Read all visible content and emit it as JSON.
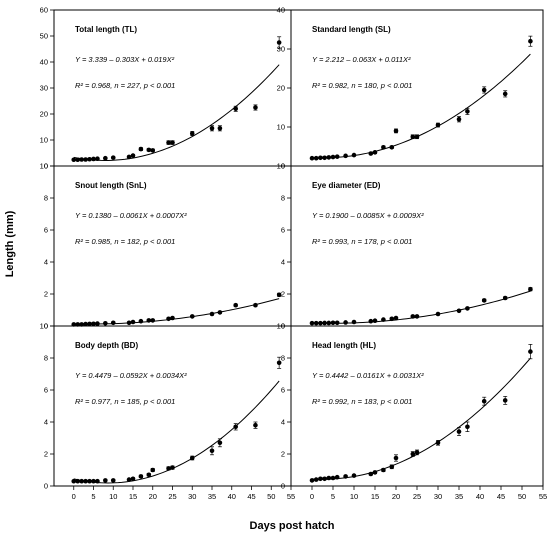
{
  "xlabel": "Days post hatch",
  "ylabel": "Length (mm)",
  "chart_data": [
    {
      "type": "scatter",
      "title": "Total length (TL)",
      "equation": "Y = 3.339 – 0.303X + 0.019X²",
      "stats": "R² = 0.968, n = 227, p < 0.001",
      "coef": [
        3.339,
        -0.303,
        0.019
      ],
      "ylim": [
        0,
        60
      ],
      "yticks": [
        "0",
        "10",
        "20",
        "30",
        "40",
        "50",
        "60"
      ],
      "x": [
        0,
        1,
        2,
        3,
        4,
        5,
        6,
        8,
        10,
        14,
        15,
        17,
        19,
        20,
        24,
        25,
        30,
        35,
        37,
        41,
        46,
        52
      ],
      "y": [
        2.4,
        2.4,
        2.5,
        2.5,
        2.6,
        2.7,
        2.8,
        3.0,
        3.2,
        3.5,
        4.0,
        6.5,
        6.2,
        6.0,
        9.0,
        9.0,
        12.5,
        14.5,
        14.5,
        22.0,
        22.5,
        47.5
      ],
      "err": [
        0.2,
        0.2,
        0.2,
        0.2,
        0.2,
        0.2,
        0.2,
        0.3,
        0.3,
        0.3,
        0.4,
        0.6,
        0.5,
        0.5,
        0.7,
        0.7,
        0.8,
        1.0,
        1.0,
        1.0,
        1.0,
        2.2
      ]
    },
    {
      "type": "scatter",
      "title": "Standard length (SL)",
      "equation": "Y = 2.212 – 0.063X + 0.011X²",
      "stats": "R² = 0.982, n = 180, p < 0.001",
      "coef": [
        2.212,
        -0.063,
        0.011
      ],
      "ylim": [
        0,
        40
      ],
      "yticks": [
        "0",
        "10",
        "20",
        "30",
        "40"
      ],
      "x": [
        0,
        1,
        2,
        3,
        4,
        5,
        6,
        8,
        10,
        14,
        15,
        17,
        19,
        20,
        24,
        25,
        30,
        35,
        37,
        41,
        46,
        52
      ],
      "y": [
        2.0,
        2.0,
        2.1,
        2.1,
        2.2,
        2.3,
        2.4,
        2.6,
        2.8,
        3.2,
        3.5,
        4.8,
        4.8,
        9.0,
        7.5,
        7.5,
        10.5,
        12.0,
        14.0,
        19.5,
        18.5,
        32.0
      ],
      "err": [
        0.1,
        0.1,
        0.1,
        0.1,
        0.1,
        0.1,
        0.1,
        0.2,
        0.2,
        0.2,
        0.3,
        0.3,
        0.3,
        0.5,
        0.5,
        0.5,
        0.5,
        0.7,
        0.8,
        0.8,
        0.8,
        1.3
      ]
    },
    {
      "type": "scatter",
      "title": "Snout length (SnL)",
      "equation": "Y = 0.1380 – 0.0061X + 0.0007X²",
      "stats": "R² = 0.985, n = 182, p < 0.001",
      "coef": [
        0.138,
        -0.0061,
        0.0007
      ],
      "ylim": [
        0,
        10
      ],
      "yticks": [
        "0",
        "2",
        "4",
        "6",
        "8",
        "10"
      ],
      "x": [
        0,
        1,
        2,
        3,
        4,
        5,
        6,
        8,
        10,
        14,
        15,
        17,
        19,
        20,
        24,
        25,
        30,
        35,
        37,
        41,
        46,
        52
      ],
      "y": [
        0.1,
        0.1,
        0.1,
        0.12,
        0.13,
        0.14,
        0.15,
        0.17,
        0.2,
        0.2,
        0.25,
        0.3,
        0.35,
        0.35,
        0.45,
        0.5,
        0.6,
        0.75,
        0.85,
        1.3,
        1.3,
        1.95
      ],
      "err": [
        0.02,
        0.02,
        0.02,
        0.02,
        0.02,
        0.02,
        0.02,
        0.03,
        0.03,
        0.03,
        0.04,
        0.04,
        0.05,
        0.05,
        0.05,
        0.05,
        0.05,
        0.06,
        0.06,
        0.07,
        0.07,
        0.1
      ]
    },
    {
      "type": "scatter",
      "title": "Eye diameter (ED)",
      "equation": "Y = 0.1900 – 0.0085X + 0.0009X²",
      "stats": "R² = 0.993, n = 178, p < 0.001",
      "coef": [
        0.19,
        -0.0085,
        0.0009
      ],
      "ylim": [
        0,
        10
      ],
      "yticks": [
        "0",
        "2",
        "4",
        "6",
        "8",
        "10"
      ],
      "x": [
        0,
        1,
        2,
        3,
        4,
        5,
        6,
        8,
        10,
        14,
        15,
        17,
        19,
        20,
        24,
        25,
        30,
        35,
        37,
        41,
        46,
        52
      ],
      "y": [
        0.18,
        0.18,
        0.18,
        0.19,
        0.19,
        0.2,
        0.2,
        0.22,
        0.25,
        0.3,
        0.33,
        0.4,
        0.45,
        0.5,
        0.6,
        0.6,
        0.75,
        0.95,
        1.1,
        1.6,
        1.75,
        2.3
      ],
      "err": [
        0.02,
        0.02,
        0.02,
        0.02,
        0.02,
        0.02,
        0.02,
        0.03,
        0.03,
        0.03,
        0.03,
        0.04,
        0.04,
        0.05,
        0.05,
        0.05,
        0.05,
        0.06,
        0.06,
        0.08,
        0.08,
        0.1
      ]
    },
    {
      "type": "scatter",
      "title": "Body depth (BD)",
      "equation": "Y = 0.4479 – 0.0592X + 0.0034X²",
      "stats": "R² = 0.977, n = 185, p < 0.001",
      "coef": [
        0.4479,
        -0.0592,
        0.0034
      ],
      "ylim": [
        0,
        10
      ],
      "yticks": [
        "0",
        "2",
        "4",
        "6",
        "8",
        "10"
      ],
      "x": [
        0,
        1,
        2,
        3,
        4,
        5,
        6,
        8,
        10,
        14,
        15,
        17,
        19,
        20,
        24,
        25,
        30,
        35,
        37,
        41,
        46,
        52
      ],
      "y": [
        0.3,
        0.3,
        0.3,
        0.3,
        0.3,
        0.3,
        0.3,
        0.35,
        0.35,
        0.4,
        0.45,
        0.6,
        0.7,
        1.0,
        1.1,
        1.15,
        1.75,
        2.2,
        2.7,
        3.7,
        3.8,
        7.7
      ],
      "err": [
        0.05,
        0.05,
        0.05,
        0.05,
        0.05,
        0.05,
        0.05,
        0.05,
        0.05,
        0.05,
        0.06,
        0.08,
        0.08,
        0.1,
        0.1,
        0.1,
        0.12,
        0.25,
        0.25,
        0.2,
        0.2,
        0.35
      ]
    },
    {
      "type": "scatter",
      "title": "Head length (HL)",
      "equation": "Y = 0.4442 – 0.0161X + 0.0031X²",
      "stats": "R² = 0.992, n = 183, p < 0.001",
      "coef": [
        0.4442,
        -0.0161,
        0.0031
      ],
      "ylim": [
        0,
        10
      ],
      "yticks": [
        "0",
        "2",
        "4",
        "6",
        "8",
        "10"
      ],
      "x": [
        0,
        1,
        2,
        3,
        4,
        5,
        6,
        8,
        10,
        14,
        15,
        17,
        19,
        20,
        24,
        25,
        30,
        35,
        37,
        41,
        46,
        52
      ],
      "y": [
        0.35,
        0.4,
        0.45,
        0.45,
        0.5,
        0.5,
        0.55,
        0.6,
        0.65,
        0.75,
        0.85,
        1.0,
        1.2,
        1.75,
        2.0,
        2.1,
        2.7,
        3.4,
        3.7,
        5.3,
        5.35,
        8.4
      ],
      "err": [
        0.05,
        0.05,
        0.05,
        0.05,
        0.05,
        0.05,
        0.05,
        0.06,
        0.06,
        0.07,
        0.08,
        0.1,
        0.12,
        0.2,
        0.15,
        0.15,
        0.15,
        0.25,
        0.3,
        0.25,
        0.25,
        0.45
      ]
    }
  ]
}
